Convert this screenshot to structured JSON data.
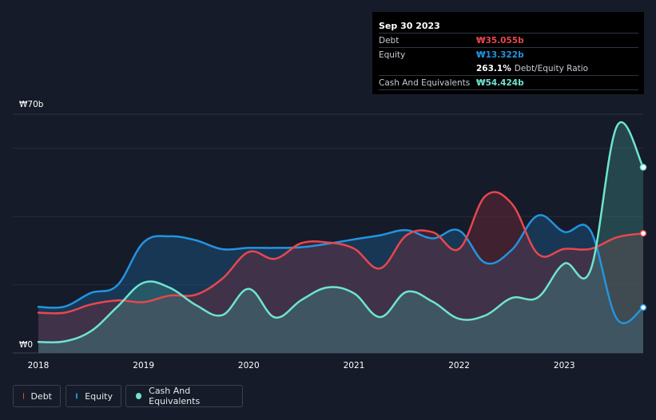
{
  "tooltip": {
    "date": "Sep 30 2023",
    "debt_label": "Debt",
    "debt_value": "₩35.055b",
    "equity_label": "Equity",
    "equity_value": "₩13.322b",
    "ratio_value": "263.1%",
    "ratio_label": "Debt/Equity Ratio",
    "cash_label": "Cash And Equivalents",
    "cash_value": "₩54.424b"
  },
  "colors": {
    "debt": "#e8474f",
    "equity": "#2394e0",
    "cash": "#6fe4cf",
    "background": "#151b28"
  },
  "legend": [
    {
      "key": "debt",
      "label": "Debt"
    },
    {
      "key": "equity",
      "label": "Equity"
    },
    {
      "key": "cash",
      "label": "Cash And Equivalents"
    }
  ],
  "chart_data": {
    "type": "area",
    "title": "",
    "xlabel": "",
    "ylabel": "",
    "ylim": [
      0,
      70
    ],
    "xlim": [
      2018.0,
      2023.75
    ],
    "y_tick_labels": [
      {
        "value": 70,
        "label": "₩70b"
      },
      {
        "value": 0,
        "label": "₩0"
      }
    ],
    "x_ticks": [
      2018,
      2019,
      2020,
      2021,
      2022,
      2023
    ],
    "x_tick_labels": [
      "2018",
      "2019",
      "2020",
      "2021",
      "2022",
      "2023"
    ],
    "series": [
      {
        "name": "Debt",
        "key": "debt",
        "x": [
          2018.0,
          2018.25,
          2018.5,
          2018.75,
          2019.0,
          2019.25,
          2019.5,
          2019.75,
          2020.0,
          2020.25,
          2020.5,
          2020.75,
          2021.0,
          2021.25,
          2021.5,
          2021.75,
          2022.0,
          2022.25,
          2022.5,
          2022.75,
          2023.0,
          2023.25,
          2023.5,
          2023.75
        ],
        "values": [
          11.8,
          11.8,
          14.2,
          15.4,
          14.9,
          16.8,
          17.1,
          21.8,
          29.6,
          27.6,
          32.2,
          32.4,
          30.6,
          24.8,
          34.5,
          35.4,
          30.5,
          46.0,
          43.8,
          29.0,
          30.5,
          30.5,
          33.9,
          35.055
        ]
      },
      {
        "name": "Equity",
        "key": "equity",
        "x": [
          2018.0,
          2018.25,
          2018.5,
          2018.75,
          2019.0,
          2019.25,
          2019.5,
          2019.75,
          2020.0,
          2020.25,
          2020.5,
          2020.75,
          2021.0,
          2021.25,
          2021.5,
          2021.75,
          2022.0,
          2022.25,
          2022.5,
          2022.75,
          2023.0,
          2023.25,
          2023.5,
          2023.75
        ],
        "values": [
          13.5,
          13.6,
          17.6,
          19.8,
          32.4,
          34.2,
          33.0,
          30.4,
          30.8,
          30.8,
          31.0,
          32.0,
          33.3,
          34.5,
          36.0,
          33.6,
          35.9,
          26.4,
          30.2,
          40.3,
          35.5,
          35.8,
          10.0,
          13.322
        ]
      },
      {
        "name": "Cash And Equivalents",
        "key": "cash",
        "x": [
          2018.0,
          2018.25,
          2018.5,
          2018.75,
          2019.0,
          2019.25,
          2019.5,
          2019.75,
          2020.0,
          2020.25,
          2020.5,
          2020.75,
          2021.0,
          2021.25,
          2021.5,
          2021.75,
          2022.0,
          2022.25,
          2022.5,
          2022.75,
          2023.0,
          2023.25,
          2023.5,
          2023.75
        ],
        "values": [
          3.2,
          3.4,
          6.4,
          13.5,
          20.6,
          19.1,
          14.0,
          11.1,
          18.8,
          10.4,
          15.5,
          19.2,
          17.5,
          10.5,
          17.9,
          15.0,
          10.0,
          11.0,
          16.1,
          16.3,
          26.2,
          24.4,
          66.5,
          54.424
        ]
      }
    ]
  }
}
